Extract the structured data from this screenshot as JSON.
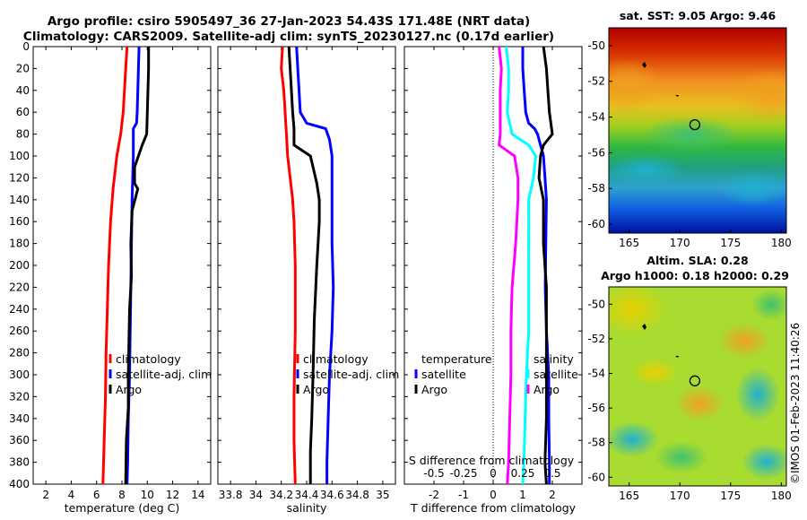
{
  "title_line1": "Argo profile: csiro 5905497_36 27-Jan-2023 54.43S 171.48E (NRT data)",
  "title_line2": "Climatology: CARS2009. Satellite-adj clim: synTS_20230127.nc (0.17d earlier)",
  "sst_title": "sat. SST: 9.05 Argo: 9.46",
  "sla_title1": "Altim. SLA: 0.28",
  "sla_title2": "Argo h1000: 0.18 h2000: 0.29",
  "credit": "©IMOS 01-Feb-2023 11:40:26",
  "colors": {
    "climatology": "#ff0000",
    "satellite": "#0000ff",
    "argo": "#000000",
    "temp_diff_sat": "#00ffff",
    "sal_diff": "#ff00ff"
  },
  "chart_data": [
    {
      "type": "line",
      "id": "temperature",
      "xlabel": "temperature (deg C)",
      "ylabel": "",
      "xlim": [
        1,
        15
      ],
      "ylim": [
        400,
        0
      ],
      "xticks": [
        2,
        4,
        6,
        8,
        10,
        12,
        14
      ],
      "xtick_labels": [
        "2",
        "4",
        "6",
        "8",
        "10",
        "12",
        "14"
      ],
      "yticks": [
        0,
        20,
        40,
        60,
        80,
        100,
        120,
        140,
        160,
        180,
        200,
        220,
        240,
        260,
        280,
        300,
        320,
        340,
        360,
        380,
        400
      ],
      "legend": [
        "climatology",
        "satellite-adj. clim",
        "Argo"
      ],
      "series": [
        {
          "name": "climatology",
          "color": "#ff0000",
          "points": [
            [
              8.4,
              0
            ],
            [
              8.3,
              20
            ],
            [
              8.2,
              40
            ],
            [
              8.1,
              60
            ],
            [
              7.9,
              80
            ],
            [
              7.6,
              100
            ],
            [
              7.3,
              130
            ],
            [
              7.1,
              160
            ],
            [
              6.95,
              200
            ],
            [
              6.85,
              240
            ],
            [
              6.75,
              280
            ],
            [
              6.7,
              320
            ],
            [
              6.6,
              360
            ],
            [
              6.5,
              400
            ]
          ]
        },
        {
          "name": "satellite-adj. clim",
          "color": "#0000ff",
          "points": [
            [
              9.35,
              0
            ],
            [
              9.3,
              20
            ],
            [
              9.25,
              40
            ],
            [
              9.2,
              60
            ],
            [
              9.15,
              70
            ],
            [
              8.9,
              75
            ],
            [
              8.9,
              100
            ],
            [
              8.8,
              140
            ],
            [
              8.75,
              180
            ],
            [
              8.7,
              220
            ],
            [
              8.65,
              260
            ],
            [
              8.6,
              300
            ],
            [
              8.5,
              340
            ],
            [
              8.45,
              380
            ],
            [
              8.4,
              400
            ]
          ]
        },
        {
          "name": "Argo",
          "color": "#000000",
          "points": [
            [
              10.1,
              0
            ],
            [
              10.1,
              20
            ],
            [
              10.05,
              40
            ],
            [
              10.0,
              60
            ],
            [
              9.95,
              80
            ],
            [
              9.6,
              90
            ],
            [
              9.3,
              100
            ],
            [
              9.0,
              110
            ],
            [
              9.0,
              125
            ],
            [
              9.25,
              130
            ],
            [
              8.8,
              150
            ],
            [
              8.7,
              180
            ],
            [
              8.75,
              210
            ],
            [
              8.6,
              240
            ],
            [
              8.55,
              270
            ],
            [
              8.5,
              300
            ],
            [
              8.5,
              330
            ],
            [
              8.35,
              360
            ],
            [
              8.3,
              400
            ]
          ]
        }
      ]
    },
    {
      "type": "line",
      "id": "salinity",
      "xlabel": "salinity",
      "xlim": [
        33.7,
        35.1
      ],
      "ylim": [
        400,
        0
      ],
      "xticks": [
        33.8,
        34,
        34.2,
        34.4,
        34.6,
        34.8,
        35
      ],
      "xtick_labels": [
        "33.8",
        "34",
        "34.2",
        "34.4",
        "34.6",
        "34.8",
        "35"
      ],
      "legend": [
        "climatology",
        "satellite-adj. clim",
        "Argo"
      ],
      "series": [
        {
          "name": "climatology",
          "color": "#ff0000",
          "points": [
            [
              34.21,
              0
            ],
            [
              34.2,
              20
            ],
            [
              34.22,
              40
            ],
            [
              34.23,
              60
            ],
            [
              34.24,
              80
            ],
            [
              34.25,
              100
            ],
            [
              34.27,
              120
            ],
            [
              34.29,
              140
            ],
            [
              34.3,
              160
            ],
            [
              34.31,
              200
            ],
            [
              34.31,
              260
            ],
            [
              34.3,
              320
            ],
            [
              34.3,
              360
            ],
            [
              34.31,
              400
            ]
          ]
        },
        {
          "name": "satellite-adj. clim",
          "color": "#0000ff",
          "points": [
            [
              34.32,
              0
            ],
            [
              34.33,
              20
            ],
            [
              34.34,
              40
            ],
            [
              34.35,
              60
            ],
            [
              34.4,
              70
            ],
            [
              34.55,
              75
            ],
            [
              34.58,
              85
            ],
            [
              34.6,
              100
            ],
            [
              34.6,
              140
            ],
            [
              34.6,
              180
            ],
            [
              34.61,
              220
            ],
            [
              34.6,
              260
            ],
            [
              34.58,
              300
            ],
            [
              34.57,
              340
            ],
            [
              34.56,
              380
            ],
            [
              34.56,
              400
            ]
          ]
        },
        {
          "name": "Argo",
          "color": "#000000",
          "points": [
            [
              34.26,
              0
            ],
            [
              34.27,
              20
            ],
            [
              34.28,
              40
            ],
            [
              34.29,
              60
            ],
            [
              34.3,
              75
            ],
            [
              34.3,
              90
            ],
            [
              34.43,
              100
            ],
            [
              34.46,
              115
            ],
            [
              34.48,
              125
            ],
            [
              34.5,
              140
            ],
            [
              34.5,
              160
            ],
            [
              34.48,
              200
            ],
            [
              34.46,
              250
            ],
            [
              34.45,
              300
            ],
            [
              34.44,
              340
            ],
            [
              34.43,
              370
            ],
            [
              34.43,
              400
            ]
          ]
        }
      ]
    },
    {
      "type": "line",
      "id": "differences",
      "xlabel": "T difference from climatology",
      "xlabel_top": "S difference from climatology",
      "xlim": [
        -3,
        3
      ],
      "ylim": [
        400,
        0
      ],
      "xticks": [
        -2,
        -1,
        0,
        1,
        2
      ],
      "xtick_labels": [
        "-2",
        "-1",
        "0",
        "1",
        "2"
      ],
      "xticks_top": [
        -0.5,
        -0.25,
        0,
        0.25,
        0.5
      ],
      "xtick_labels_top": [
        "-0.5",
        "-0.25",
        "0",
        "0.25",
        "0.5"
      ],
      "legend_left_title": "temperature",
      "legend_right_title": "salinity",
      "legend_left": [
        "satellite",
        "Argo"
      ],
      "legend_right": [
        "satellite",
        "Argo"
      ],
      "series": [
        {
          "name": "T satellite",
          "color": "#0000ff",
          "points": [
            [
              1.0,
              0
            ],
            [
              1.0,
              20
            ],
            [
              1.05,
              40
            ],
            [
              1.1,
              60
            ],
            [
              1.2,
              70
            ],
            [
              1.4,
              75
            ],
            [
              1.5,
              80
            ],
            [
              1.6,
              90
            ],
            [
              1.7,
              100
            ],
            [
              1.75,
              120
            ],
            [
              1.8,
              140
            ],
            [
              1.78,
              180
            ],
            [
              1.76,
              220
            ],
            [
              1.8,
              260
            ],
            [
              1.88,
              300
            ],
            [
              1.88,
              340
            ],
            [
              1.9,
              380
            ],
            [
              1.9,
              400
            ]
          ]
        },
        {
          "name": "T Argo",
          "color": "#000000",
          "points": [
            [
              1.7,
              0
            ],
            [
              1.8,
              20
            ],
            [
              1.85,
              40
            ],
            [
              1.9,
              60
            ],
            [
              2.0,
              80
            ],
            [
              1.7,
              90
            ],
            [
              1.6,
              100
            ],
            [
              1.55,
              120
            ],
            [
              1.7,
              140
            ],
            [
              1.7,
              180
            ],
            [
              1.8,
              220
            ],
            [
              1.8,
              260
            ],
            [
              1.8,
              300
            ],
            [
              1.8,
              340
            ],
            [
              1.75,
              380
            ],
            [
              1.8,
              400
            ]
          ]
        },
        {
          "name": "S satellite",
          "color": "#00ffff",
          "points": [
            [
              0.11,
              0
            ],
            [
              0.13,
              20
            ],
            [
              0.13,
              40
            ],
            [
              0.12,
              60
            ],
            [
              0.16,
              80
            ],
            [
              0.3,
              90
            ],
            [
              0.36,
              100
            ],
            [
              0.34,
              120
            ],
            [
              0.3,
              140
            ],
            [
              0.3,
              180
            ],
            [
              0.3,
              220
            ],
            [
              0.3,
              260
            ],
            [
              0.28,
              300
            ],
            [
              0.27,
              340
            ],
            [
              0.26,
              380
            ],
            [
              0.25,
              400
            ]
          ]
        },
        {
          "name": "S Argo",
          "color": "#ff00ff",
          "points": [
            [
              0.05,
              0
            ],
            [
              0.07,
              20
            ],
            [
              0.06,
              40
            ],
            [
              0.06,
              60
            ],
            [
              0.06,
              80
            ],
            [
              0.05,
              90
            ],
            [
              0.18,
              100
            ],
            [
              0.21,
              120
            ],
            [
              0.21,
              140
            ],
            [
              0.19,
              180
            ],
            [
              0.16,
              220
            ],
            [
              0.15,
              260
            ],
            [
              0.15,
              300
            ],
            [
              0.14,
              340
            ],
            [
              0.13,
              380
            ],
            [
              0.12,
              400
            ]
          ]
        }
      ]
    },
    {
      "type": "heatmap",
      "id": "sst_map",
      "title": "sat. SST: 9.05 Argo: 9.46",
      "xlim": [
        163,
        180.5
      ],
      "ylim": [
        -60.5,
        -49
      ],
      "xticks": [
        165,
        170,
        175,
        180
      ],
      "xtick_labels": [
        "165",
        "170",
        "175",
        "180"
      ],
      "yticks": [
        -50,
        -52,
        -54,
        -56,
        -58,
        -60
      ],
      "ytick_labels": [
        "-50",
        "-52",
        "-54",
        "-56",
        "-58",
        "-60"
      ],
      "marker": [
        171.48,
        -54.43
      ]
    },
    {
      "type": "heatmap",
      "id": "sla_map",
      "title": "Altim. SLA: 0.28",
      "subtitle": "Argo h1000: 0.18 h2000: 0.29",
      "xlim": [
        163,
        180.5
      ],
      "ylim": [
        -60.5,
        -49
      ],
      "xticks": [
        165,
        170,
        175,
        180
      ],
      "xtick_labels": [
        "165",
        "170",
        "175",
        "180"
      ],
      "yticks": [
        -50,
        -52,
        -54,
        -56,
        -58,
        -60
      ],
      "ytick_labels": [
        "-50",
        "-52",
        "-54",
        "-56",
        "-58",
        "-60"
      ],
      "marker": [
        171.48,
        -54.43
      ]
    }
  ]
}
